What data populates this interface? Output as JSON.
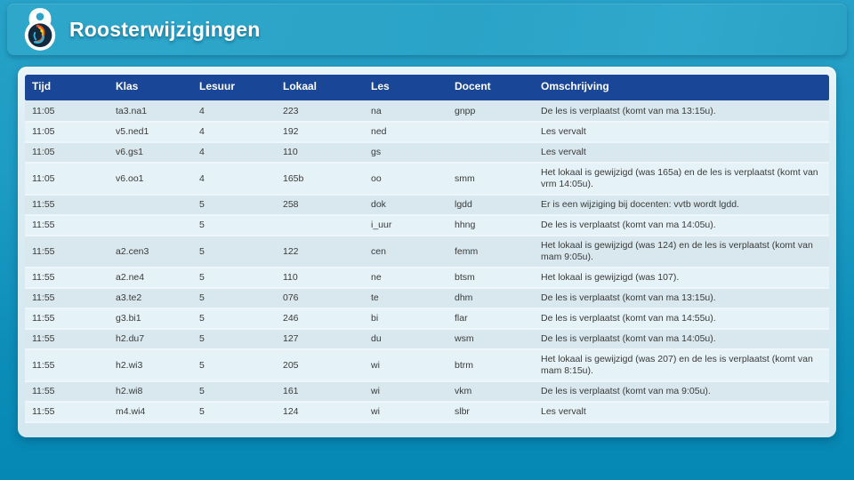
{
  "header": {
    "title": "Roosterwijzigingen",
    "logo": "school-emblem-icon"
  },
  "colors": {
    "band_blue": "#2aa3c7",
    "page_blue_top": "#27a1c7",
    "page_blue_bottom": "#0588b4",
    "table_header_navy": "#1a4697",
    "row_dark": "#d8e8ee",
    "row_light": "#e5f2f7",
    "card_background": "#dcedf3",
    "logo_red": "#e34b2a",
    "logo_orange": "#f6a21d",
    "logo_teal": "#2fb3d2"
  },
  "table": {
    "columns": [
      "Tijd",
      "Klas",
      "Lesuur",
      "Lokaal",
      "Les",
      "Docent",
      "Omschrijving"
    ],
    "rows": [
      [
        "11:05",
        "ta3.na1",
        "4",
        "223",
        "na",
        "gnpp",
        "De les is verplaatst (komt van ma 13:15u)."
      ],
      [
        "11:05",
        "v5.ned1",
        "4",
        "192",
        "ned",
        "",
        "Les vervalt"
      ],
      [
        "11:05",
        "v6.gs1",
        "4",
        "110",
        "gs",
        "",
        "Les vervalt"
      ],
      [
        "11:05",
        "v6.oo1",
        "4",
        "165b",
        "oo",
        "smm",
        "Het lokaal is gewijzigd (was 165a) en de les is verplaatst (komt van vrm 14:05u)."
      ],
      [
        "11:55",
        "",
        "5",
        "258",
        "dok",
        "lgdd",
        "Er is een wijziging bij docenten: vvtb wordt lgdd."
      ],
      [
        "11:55",
        "",
        "5",
        "",
        "i_uur",
        "hhng",
        "De les is verplaatst (komt van ma 14:05u)."
      ],
      [
        "11:55",
        "a2.cen3",
        "5",
        "122",
        "cen",
        "femm",
        "Het lokaal is gewijzigd (was 124) en de les is verplaatst (komt van mam 9:05u)."
      ],
      [
        "11:55",
        "a2.ne4",
        "5",
        "110",
        "ne",
        "btsm",
        "Het lokaal is gewijzigd (was 107)."
      ],
      [
        "11:55",
        "a3.te2",
        "5",
        "076",
        "te",
        "dhm",
        "De les is verplaatst (komt van ma 13:15u)."
      ],
      [
        "11:55",
        "g3.bi1",
        "5",
        "246",
        "bi",
        "flar",
        "De les is verplaatst (komt van ma 14:55u)."
      ],
      [
        "11:55",
        "h2.du7",
        "5",
        "127",
        "du",
        "wsm",
        "De les is verplaatst (komt van ma 14:05u)."
      ],
      [
        "11:55",
        "h2.wi3",
        "5",
        "205",
        "wi",
        "btrm",
        "Het lokaal is gewijzigd (was 207) en de les is verplaatst (komt van mam 8:15u)."
      ],
      [
        "11:55",
        "h2.wi8",
        "5",
        "161",
        "wi",
        "vkm",
        "De les is verplaatst (komt van ma 9:05u)."
      ],
      [
        "11:55",
        "m4.wi4",
        "5",
        "124",
        "wi",
        "slbr",
        "Les vervalt"
      ]
    ]
  }
}
